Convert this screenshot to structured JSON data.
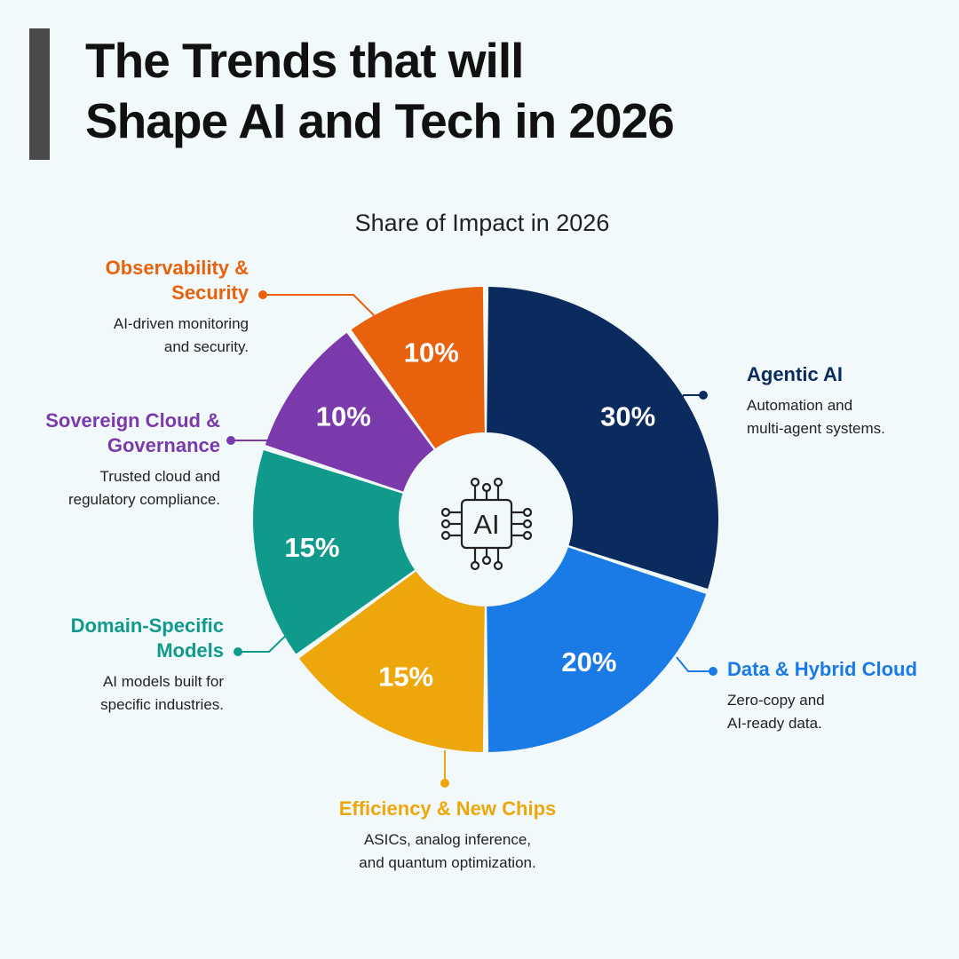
{
  "title": {
    "line1": "The Trends that will",
    "line2": "Shape AI and Tech in 2026"
  },
  "chart_data": {
    "type": "pie",
    "title": "Share of Impact in 2026",
    "center_label": "AI",
    "slices": [
      {
        "name": "Agentic AI",
        "value": 30,
        "label": "30%",
        "color": "#0b2a5e",
        "description": [
          "Automation and",
          "multi-agent systems."
        ]
      },
      {
        "name": "Data & Hybrid Cloud",
        "value": 20,
        "label": "20%",
        "color": "#1a7ae6",
        "description": [
          "Zero-copy and",
          "AI-ready data."
        ]
      },
      {
        "name": "Efficiency & New Chips",
        "value": 15,
        "label": "15%",
        "color": "#eea70a",
        "description": [
          "ASICs, analog inference,",
          "and quantum optimization."
        ]
      },
      {
        "name": "Domain-Specific Models",
        "name_lines": [
          "Domain-Specific",
          "Models"
        ],
        "value": 15,
        "label": "15%",
        "color": "#0f9a8c",
        "description": [
          "AI models built for",
          "specific industries."
        ]
      },
      {
        "name": "Sovereign Cloud & Governance",
        "name_lines": [
          "Sovereign Cloud &",
          "Governance"
        ],
        "value": 10,
        "label": "10%",
        "color": "#7a3aac",
        "description": [
          "Trusted cloud and",
          "regulatory compliance."
        ]
      },
      {
        "name": "Observability & Security",
        "name_lines": [
          "Observability &",
          "Security"
        ],
        "value": 10,
        "label": "10%",
        "color": "#e8620e",
        "description": [
          "AI-driven monitoring",
          "and security."
        ]
      }
    ]
  }
}
